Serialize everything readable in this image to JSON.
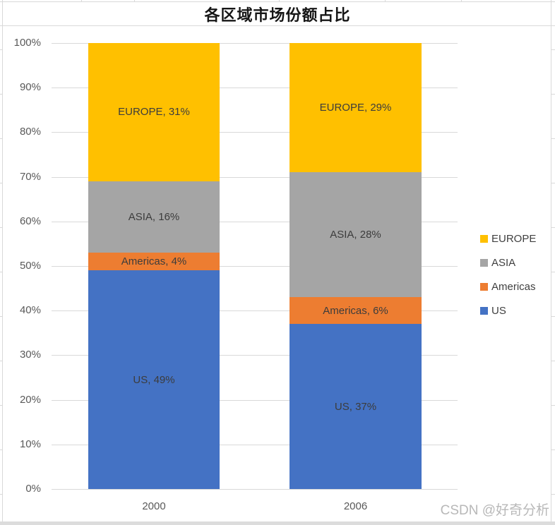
{
  "title_bar": {
    "title": "各区域市场份额占比"
  },
  "watermark": "CSDN @好奇分析",
  "colors": {
    "grid": "#D9D9D9",
    "axis_text": "#595959",
    "label_text": "#3C3C3C",
    "legend_text": "#404040",
    "title_text": "#161616",
    "watermark": "#B8B8B8",
    "us": "#4472C4",
    "americas": "#ED7D31",
    "asia": "#A5A5A5",
    "europe": "#FFC000"
  },
  "chart_data": {
    "type": "bar",
    "variant": "100%-stacked-column",
    "title": "各区域市场份额占比",
    "categories": [
      "2000",
      "2006"
    ],
    "series": [
      {
        "name": "US",
        "color": "#4472C4",
        "values": [
          49,
          37
        ],
        "labels": [
          "US, 49%",
          "US, 37%"
        ]
      },
      {
        "name": "Americas",
        "color": "#ED7D31",
        "values": [
          4,
          6
        ],
        "labels": [
          "Americas, 4%",
          "Americas, 6%"
        ]
      },
      {
        "name": "ASIA",
        "color": "#A5A5A5",
        "values": [
          16,
          28
        ],
        "labels": [
          "ASIA, 16%",
          "ASIA, 28%"
        ]
      },
      {
        "name": "EUROPE",
        "color": "#FFC000",
        "values": [
          31,
          29
        ],
        "labels": [
          "EUROPE, 31%",
          "EUROPE, 29%"
        ]
      }
    ],
    "ylim": [
      0,
      100
    ],
    "y_tick_labels": [
      "0%",
      "10%",
      "20%",
      "30%",
      "40%",
      "50%",
      "60%",
      "70%",
      "80%",
      "90%",
      "100%"
    ],
    "grid": true,
    "legend": {
      "position": "right",
      "entries": [
        "EUROPE",
        "ASIA",
        "Americas",
        "US"
      ]
    }
  }
}
